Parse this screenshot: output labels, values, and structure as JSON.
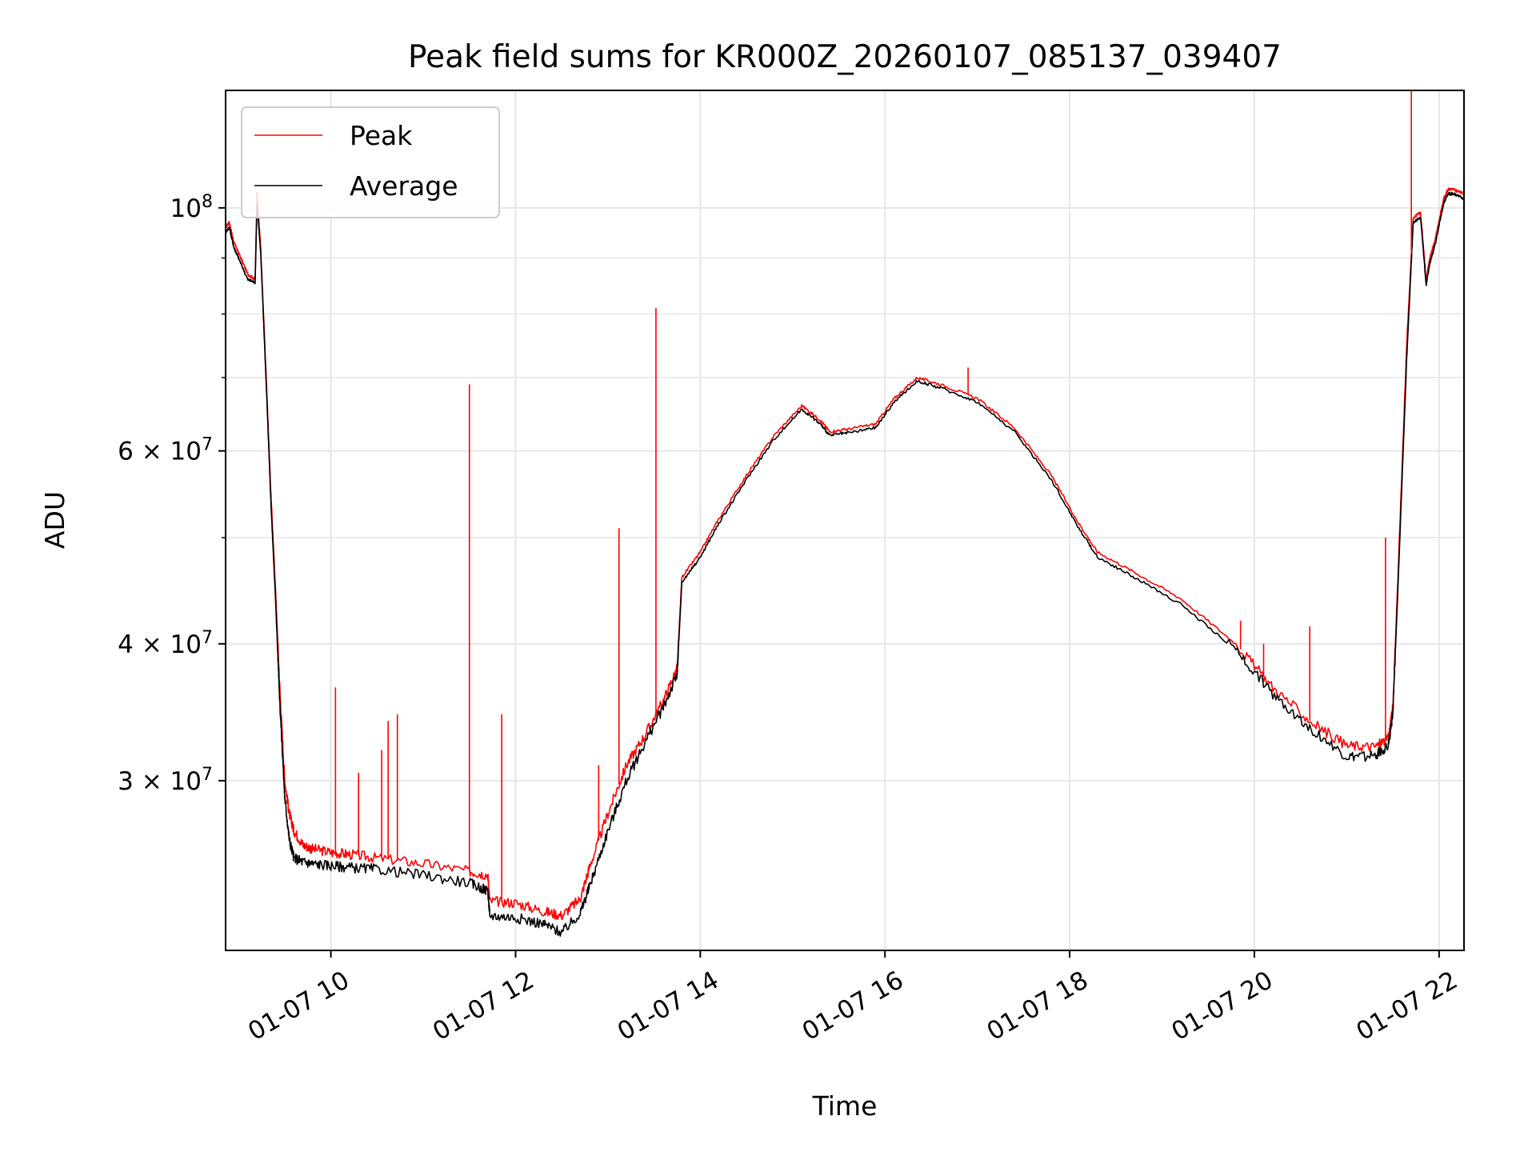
{
  "chart_data": {
    "type": "line",
    "title": "Peak field sums for KR000Z_20260107_085137_039407",
    "xlabel": "Time",
    "ylabel": "ADU",
    "yscale": "log",
    "grid": true,
    "legend_position": "upper-left",
    "x_unit": "hour of day on 2026-01-07",
    "xlim": [
      8.86,
      22.27
    ],
    "ylim": [
      21000000,
      128000000
    ],
    "x_ticks": [
      {
        "value": 10,
        "label": "01-07 10"
      },
      {
        "value": 12,
        "label": "01-07 12"
      },
      {
        "value": 14,
        "label": "01-07 14"
      },
      {
        "value": 16,
        "label": "01-07 16"
      },
      {
        "value": 18,
        "label": "01-07 18"
      },
      {
        "value": 20,
        "label": "01-07 20"
      },
      {
        "value": 22,
        "label": "01-07 22"
      }
    ],
    "y_ticks_major": [
      {
        "value": 30000000,
        "base": "3 × 10",
        "exp": "7"
      },
      {
        "value": 40000000,
        "base": "4 × 10",
        "exp": "7"
      },
      {
        "value": 60000000,
        "base": "6 × 10",
        "exp": "7"
      },
      {
        "value": 100000000,
        "base": "10",
        "exp": "8"
      }
    ],
    "y_ticks_minor": [
      50000000,
      70000000,
      80000000,
      90000000
    ],
    "series": [
      {
        "name": "Peak",
        "color": "#ff0000",
        "x": [
          8.86,
          8.9,
          8.95,
          9.0,
          9.1,
          9.18,
          9.2,
          9.24,
          9.3,
          9.35,
          9.4,
          9.45,
          9.5,
          9.55,
          9.6,
          9.7,
          9.8,
          10.0,
          10.2,
          10.5,
          11.0,
          11.5,
          11.7,
          11.72,
          12.0,
          12.3,
          12.5,
          12.7,
          12.8,
          13.0,
          13.2,
          13.4,
          13.6,
          13.75,
          13.8,
          14.0,
          14.2,
          14.5,
          14.8,
          15.1,
          15.3,
          15.4,
          15.6,
          15.9,
          16.1,
          16.35,
          16.6,
          17.0,
          17.4,
          17.8,
          18.1,
          18.3,
          18.7,
          19.2,
          19.8,
          20.2,
          20.6,
          21.0,
          21.3,
          21.45,
          21.5,
          21.55,
          21.65,
          21.72,
          21.8,
          21.86,
          21.9,
          21.95,
          22.05,
          22.1,
          22.15,
          22.27
        ],
        "y": [
          96000000,
          97000000,
          93000000,
          91000000,
          87000000,
          86000000,
          103000000,
          92000000,
          70000000,
          55000000,
          45000000,
          36000000,
          30000000,
          28000000,
          27000000,
          26200000,
          26000000,
          25800000,
          25700000,
          25500000,
          25200000,
          24800000,
          24600000,
          23300000,
          23200000,
          22800000,
          22600000,
          23400000,
          25000000,
          28000000,
          31000000,
          33000000,
          35500000,
          38000000,
          46000000,
          48500000,
          52000000,
          57000000,
          62000000,
          66000000,
          64000000,
          62500000,
          62800000,
          63500000,
          67000000,
          70000000,
          69000000,
          67000000,
          63000000,
          57000000,
          51500000,
          48500000,
          46500000,
          44000000,
          40000000,
          36500000,
          34000000,
          32300000,
          32200000,
          32800000,
          35000000,
          45000000,
          75000000,
          98000000,
          99000000,
          86000000,
          90000000,
          93000000,
          102000000,
          104000000,
          104000000,
          103000000
        ]
      },
      {
        "name": "Average",
        "color": "#000000",
        "x": [
          8.86,
          8.9,
          8.95,
          9.0,
          9.1,
          9.18,
          9.2,
          9.24,
          9.3,
          9.35,
          9.4,
          9.45,
          9.5,
          9.55,
          9.6,
          9.7,
          9.8,
          10.0,
          10.2,
          10.5,
          11.0,
          11.5,
          11.7,
          11.72,
          12.0,
          12.3,
          12.5,
          12.7,
          12.8,
          13.0,
          13.2,
          13.4,
          13.6,
          13.75,
          13.8,
          14.0,
          14.2,
          14.5,
          14.8,
          15.1,
          15.3,
          15.4,
          15.6,
          15.9,
          16.1,
          16.35,
          16.6,
          17.0,
          17.4,
          17.8,
          18.1,
          18.3,
          18.7,
          19.2,
          19.8,
          20.2,
          20.6,
          21.0,
          21.3,
          21.45,
          21.5,
          21.55,
          21.65,
          21.72,
          21.8,
          21.86,
          21.9,
          21.95,
          22.05,
          22.1,
          22.15,
          22.27
        ],
        "y": [
          95000000,
          96000000,
          92000000,
          90000000,
          86000000,
          85500000,
          101000000,
          91000000,
          69000000,
          54000000,
          44000000,
          35000000,
          29000000,
          26500000,
          25500000,
          25300000,
          25200000,
          25100000,
          25000000,
          24900000,
          24600000,
          24200000,
          23800000,
          22600000,
          22500000,
          22200000,
          21800000,
          22700000,
          24000000,
          27000000,
          30000000,
          32500000,
          35000000,
          37500000,
          45500000,
          48000000,
          51500000,
          56500000,
          61500000,
          65500000,
          63500000,
          62000000,
          62300000,
          63000000,
          66500000,
          69500000,
          68500000,
          66500000,
          62500000,
          56500000,
          51000000,
          48000000,
          46000000,
          43500000,
          39500000,
          36000000,
          33500000,
          31500000,
          31600000,
          32300000,
          34500000,
          44000000,
          73000000,
          97000000,
          98000000,
          85000000,
          89000000,
          92000000,
          101000000,
          103000000,
          103000000,
          102000000
        ]
      }
    ],
    "spikes": [
      {
        "x": 10.05,
        "y": 36500000
      },
      {
        "x": 10.3,
        "y": 30500000
      },
      {
        "x": 10.55,
        "y": 32000000
      },
      {
        "x": 10.62,
        "y": 34000000
      },
      {
        "x": 10.72,
        "y": 34500000
      },
      {
        "x": 11.5,
        "y": 69000000
      },
      {
        "x": 11.85,
        "y": 34500000
      },
      {
        "x": 12.9,
        "y": 31000000
      },
      {
        "x": 13.12,
        "y": 51000000
      },
      {
        "x": 13.52,
        "y": 81000000
      },
      {
        "x": 16.9,
        "y": 71500000
      },
      {
        "x": 19.85,
        "y": 42000000
      },
      {
        "x": 20.1,
        "y": 40000000
      },
      {
        "x": 20.6,
        "y": 41500000
      },
      {
        "x": 21.42,
        "y": 50000000
      },
      {
        "x": 21.7,
        "y": 128000000
      }
    ]
  }
}
